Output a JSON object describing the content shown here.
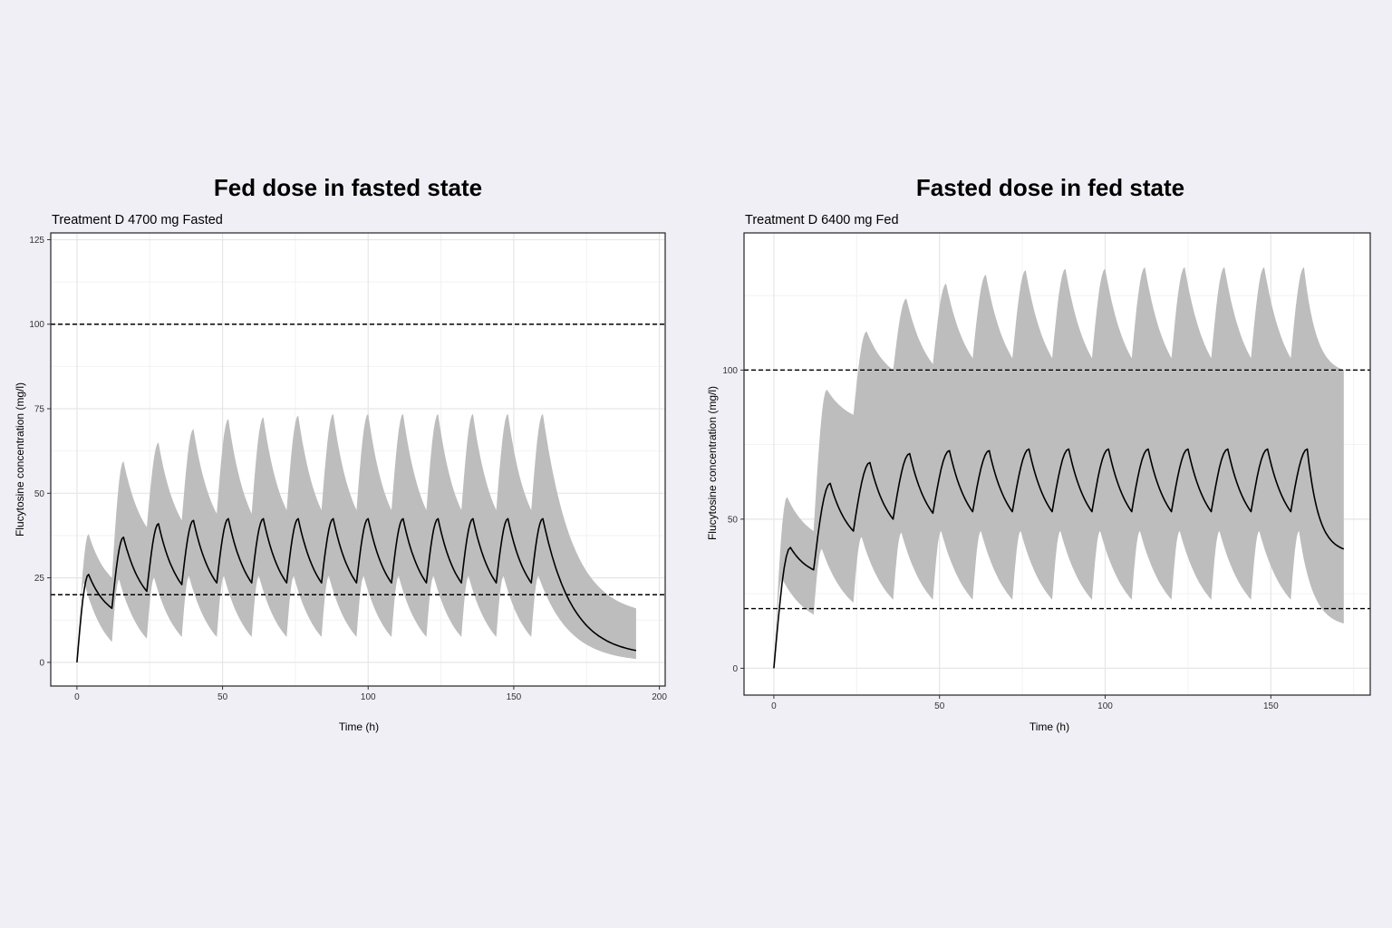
{
  "chart_data": [
    {
      "type": "area",
      "title": "Fed dose in fasted state",
      "subtitle": "Treatment D 4700 mg Fasted",
      "xlabel": "Time (h)",
      "ylabel": "Flucytosine concentration (mg/l)",
      "xlim": [
        -9,
        202
      ],
      "ylim": [
        -7,
        127
      ],
      "x_ticks": [
        0,
        50,
        100,
        150,
        200
      ],
      "y_ticks": [
        0,
        25,
        50,
        75,
        100,
        125
      ],
      "reference_lines": [
        20,
        100
      ],
      "grid": true,
      "dosing_interval_h": 12,
      "dose_times": [
        0,
        12,
        24,
        36,
        48,
        60,
        72,
        84,
        96,
        108,
        120,
        132,
        144,
        156
      ],
      "median_peaks": [
        26,
        37,
        41,
        42,
        42.5,
        42.5,
        42.5,
        42.5,
        42.5,
        42.5,
        42.5,
        42.5,
        42.5,
        42.5
      ],
      "median_troughs": [
        16,
        21,
        23,
        23.5,
        23.5,
        23.5,
        23.5,
        23.5,
        23.5,
        23.5,
        23.5,
        23.5,
        23.5,
        23.5
      ],
      "band_upper_peaks": [
        38,
        59.5,
        65,
        69,
        72,
        72.5,
        73,
        73.5,
        73.5,
        73.5,
        73.5,
        73.5,
        73.5,
        73.5
      ],
      "band_upper_troughs": [
        25,
        40,
        42,
        44,
        44,
        45,
        45,
        45,
        45,
        45,
        45,
        45,
        45,
        45
      ],
      "band_lower_peaks": [
        23.5,
        24.5,
        25,
        25.5,
        25.5,
        25.5,
        25.5,
        25.5,
        25.5,
        25.5,
        25.5,
        25.5,
        25.5,
        25.5
      ],
      "band_lower_troughs": [
        6,
        7,
        7.5,
        7.5,
        7.5,
        7.5,
        7.5,
        7.5,
        7.5,
        7.5,
        7.5,
        7.5,
        7.5,
        7.5
      ],
      "end_time": 192,
      "end_values": {
        "median": 3.5,
        "upper": 16,
        "lower": 1
      },
      "series": [
        {
          "name": "",
          "kind": "median-line",
          "color": "#000000"
        },
        {
          "name": "",
          "kind": "prediction-band",
          "color": "#bdbdbd"
        }
      ]
    },
    {
      "type": "area",
      "title": "Fasted dose in fed state",
      "subtitle": "Treatment D 6400 mg Fed",
      "xlabel": "Time (h)",
      "ylabel": "Flucytosine concentration (mg/l)",
      "xlim": [
        -9,
        180
      ],
      "ylim": [
        -9,
        146
      ],
      "x_ticks": [
        0,
        50,
        100,
        150
      ],
      "y_ticks": [
        0,
        50,
        100
      ],
      "reference_lines": [
        20,
        100
      ],
      "grid": true,
      "dosing_interval_h": 12,
      "dose_times": [
        0,
        12,
        24,
        36,
        48,
        60,
        72,
        84,
        96,
        108,
        120,
        132,
        144,
        156
      ],
      "median_peaks": [
        40.5,
        62,
        69,
        72,
        73,
        73,
        73.5,
        73.5,
        73.5,
        73.5,
        73.5,
        73.5,
        73.5,
        73.5
      ],
      "median_troughs": [
        33,
        46,
        50,
        52,
        52.5,
        52.5,
        52.5,
        52.5,
        52.5,
        52.5,
        52.5,
        52.5,
        52.5,
        52.5
      ],
      "band_upper_peaks": [
        57.5,
        93.5,
        113,
        124,
        129,
        132,
        133.5,
        134,
        134,
        134.5,
        134.5,
        134.5,
        134.5,
        134.5
      ],
      "band_upper_troughs": [
        46,
        85,
        100,
        102,
        104,
        104,
        104,
        104,
        104,
        104,
        104,
        104,
        104,
        104
      ],
      "band_lower_peaks": [
        30,
        40,
        44,
        45.5,
        46,
        46,
        46,
        46,
        46,
        46,
        46,
        46,
        46,
        46
      ],
      "band_lower_troughs": [
        18,
        22,
        23,
        23,
        23,
        23,
        23,
        23,
        23,
        23,
        23,
        23,
        23,
        23
      ],
      "end_time": 172,
      "end_values": {
        "median": 40,
        "upper": 100,
        "lower": 15
      },
      "series": [
        {
          "name": "",
          "kind": "median-line",
          "color": "#000000"
        },
        {
          "name": "",
          "kind": "prediction-band",
          "color": "#bdbdbd"
        }
      ]
    }
  ]
}
